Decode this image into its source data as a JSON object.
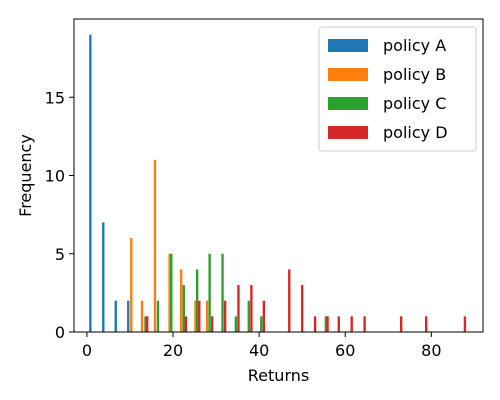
{
  "chart_data": {
    "type": "bar",
    "title": "",
    "xlabel": "Returns",
    "ylabel": "Frequency",
    "xlim": [
      -3,
      92
    ],
    "ylim": [
      0,
      20
    ],
    "xticks": [
      0,
      20,
      40,
      60,
      80
    ],
    "yticks": [
      0,
      5,
      10,
      15
    ],
    "grid": false,
    "legend_position": "top-right",
    "bar_width": 0.55,
    "series": [
      {
        "name": "policy A",
        "color": "#1f77b4",
        "points": [
          {
            "x": 0.8,
            "y": 19
          },
          {
            "x": 3.8,
            "y": 7
          },
          {
            "x": 6.7,
            "y": 2
          },
          {
            "x": 9.6,
            "y": 2
          }
        ]
      },
      {
        "name": "policy B",
        "color": "#ff7f0e",
        "points": [
          {
            "x": 10.3,
            "y": 6
          },
          {
            "x": 12.8,
            "y": 2
          },
          {
            "x": 15.8,
            "y": 11
          },
          {
            "x": 19.2,
            "y": 5
          },
          {
            "x": 21.9,
            "y": 4
          },
          {
            "x": 25.2,
            "y": 2
          },
          {
            "x": 27.9,
            "y": 2
          }
        ]
      },
      {
        "name": "policy C",
        "color": "#2ca02c",
        "points": [
          {
            "x": 13.6,
            "y": 1
          },
          {
            "x": 16.5,
            "y": 2
          },
          {
            "x": 19.6,
            "y": 5
          },
          {
            "x": 22.5,
            "y": 3
          },
          {
            "x": 25.6,
            "y": 4
          },
          {
            "x": 28.5,
            "y": 5
          },
          {
            "x": 31.5,
            "y": 5
          },
          {
            "x": 34.6,
            "y": 1
          },
          {
            "x": 37.6,
            "y": 2
          },
          {
            "x": 40.5,
            "y": 1
          },
          {
            "x": 55.5,
            "y": 1
          }
        ]
      },
      {
        "name": "policy D",
        "color": "#d62728",
        "points": [
          {
            "x": 14.0,
            "y": 1
          },
          {
            "x": 23.0,
            "y": 1
          },
          {
            "x": 26.1,
            "y": 2
          },
          {
            "x": 29.1,
            "y": 1
          },
          {
            "x": 32.1,
            "y": 2
          },
          {
            "x": 35.2,
            "y": 3
          },
          {
            "x": 38.2,
            "y": 3
          },
          {
            "x": 41.1,
            "y": 2
          },
          {
            "x": 47.0,
            "y": 4
          },
          {
            "x": 50.0,
            "y": 3
          },
          {
            "x": 53.0,
            "y": 1
          },
          {
            "x": 55.9,
            "y": 1
          },
          {
            "x": 58.5,
            "y": 1
          },
          {
            "x": 61.5,
            "y": 1
          },
          {
            "x": 64.5,
            "y": 1
          },
          {
            "x": 73.0,
            "y": 1
          },
          {
            "x": 78.8,
            "y": 1
          },
          {
            "x": 87.8,
            "y": 1
          }
        ]
      }
    ]
  }
}
